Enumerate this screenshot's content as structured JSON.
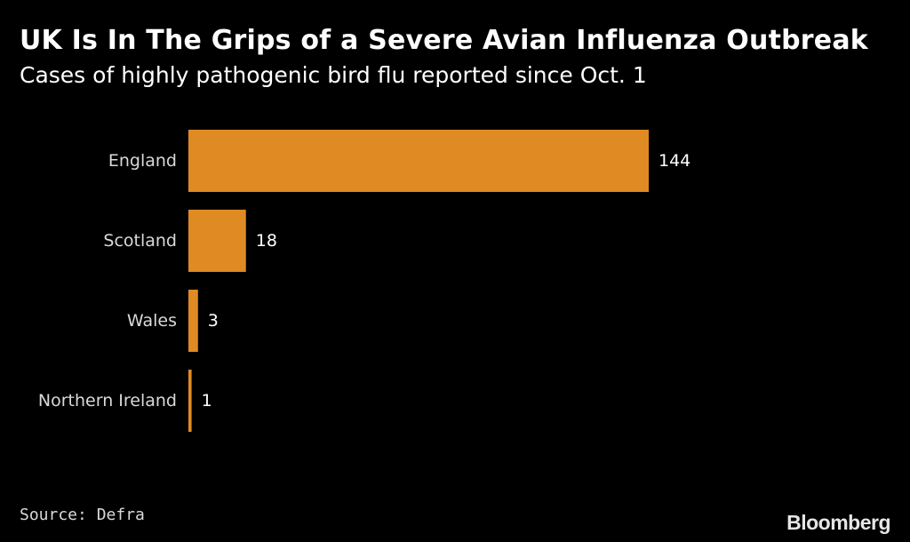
{
  "title": "UK Is In The Grips of a Severe Avian Influenza Outbreak",
  "subtitle": "Cases of highly pathogenic bird flu reported since Oct. 1",
  "source": "Source: Defra",
  "logo": "Bloomberg",
  "colors": {
    "background": "#000000",
    "bar": "#e08a24",
    "text": "#ffffff"
  },
  "chart_data": {
    "type": "bar",
    "orientation": "horizontal",
    "categories": [
      "England",
      "Scotland",
      "Wales",
      "Northern Ireland"
    ],
    "values": [
      144,
      18,
      3,
      1
    ],
    "data_labels": [
      "144",
      "18",
      "3",
      "1"
    ],
    "title": "UK Is In The Grips of a Severe Avian Influenza Outbreak",
    "subtitle": "Cases of highly pathogenic bird flu reported since Oct. 1",
    "xlabel": "",
    "ylabel": "",
    "xlim": [
      0,
      144
    ],
    "grid": false,
    "legend": "none"
  }
}
